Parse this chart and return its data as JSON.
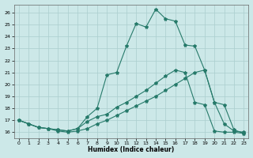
{
  "xlabel": "Humidex (Indice chaleur)",
  "background_color": "#cce8e8",
  "grid_color": "#aacece",
  "line_color": "#267a6a",
  "xlim": [
    -0.5,
    23.5
  ],
  "ylim": [
    15.5,
    26.7
  ],
  "yticks": [
    16,
    17,
    18,
    19,
    20,
    21,
    22,
    23,
    24,
    25,
    26
  ],
  "xticks": [
    0,
    1,
    2,
    3,
    4,
    5,
    6,
    7,
    8,
    9,
    10,
    11,
    12,
    13,
    14,
    15,
    16,
    17,
    18,
    19,
    20,
    21,
    22,
    23
  ],
  "line1_x": [
    0,
    1,
    2,
    3,
    4,
    5,
    6,
    7,
    8,
    9,
    10,
    11,
    12,
    13,
    14,
    15,
    16,
    17,
    18,
    19,
    20,
    21,
    22,
    23
  ],
  "line1_y": [
    17.0,
    16.7,
    16.4,
    16.3,
    16.1,
    16.0,
    16.1,
    16.3,
    16.7,
    17.0,
    17.4,
    17.8,
    18.2,
    18.6,
    19.0,
    19.5,
    20.0,
    20.5,
    21.0,
    21.2,
    18.5,
    16.7,
    16.1,
    16.0
  ],
  "line2_x": [
    0,
    1,
    2,
    3,
    4,
    5,
    6,
    7,
    8,
    9,
    10,
    11,
    12,
    13,
    14,
    15,
    16,
    17,
    18,
    19,
    20,
    21,
    22,
    23
  ],
  "line2_y": [
    17.0,
    16.7,
    16.4,
    16.3,
    16.2,
    16.1,
    16.3,
    16.9,
    17.3,
    17.5,
    18.1,
    18.5,
    19.0,
    19.5,
    20.1,
    20.7,
    21.2,
    21.0,
    18.5,
    18.3,
    16.1,
    16.0,
    16.0,
    15.9
  ],
  "line3_x": [
    0,
    1,
    2,
    3,
    4,
    5,
    6,
    7,
    8,
    9,
    10,
    11,
    12,
    13,
    14,
    15,
    16,
    17,
    18,
    19,
    20,
    21,
    22,
    23
  ],
  "line3_y": [
    17.0,
    16.7,
    16.4,
    16.3,
    16.2,
    16.1,
    16.3,
    17.3,
    18.0,
    20.8,
    21.0,
    23.2,
    25.1,
    24.8,
    26.3,
    25.5,
    25.3,
    23.3,
    23.2,
    21.2,
    18.5,
    18.3,
    16.2,
    15.9
  ]
}
